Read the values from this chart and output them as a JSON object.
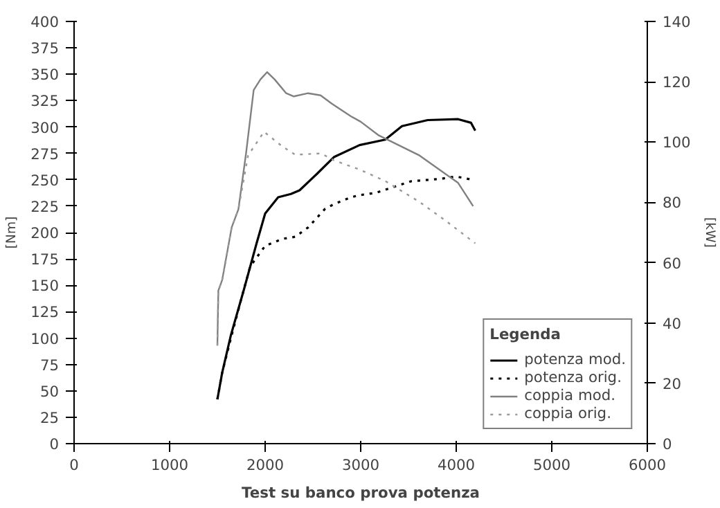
{
  "chart_data": {
    "type": "line",
    "title": "Test su banco prova potenza",
    "ylabel": "[Nm]",
    "y2label": "[kW]",
    "legend_title": "Legenda",
    "xlim": [
      0,
      6000
    ],
    "xticks": [
      0,
      1000,
      2000,
      3000,
      4000,
      5000,
      6000
    ],
    "ylim": [
      0,
      400
    ],
    "yticks": [
      0,
      25,
      50,
      75,
      100,
      125,
      150,
      175,
      200,
      225,
      250,
      275,
      300,
      325,
      350,
      375,
      400
    ],
    "y2lim": [
      0,
      140
    ],
    "y2ticks": [
      0,
      20,
      40,
      60,
      80,
      100,
      120,
      140
    ],
    "grid": false,
    "legend": "bottom right",
    "series": [
      {
        "name": "potenza mod.",
        "color": "#000000",
        "axis": "y2",
        "line_style": "solid",
        "x": [
          1500,
          1550,
          1640,
          1777,
          1911,
          2000,
          2136,
          2270,
          2360,
          2540,
          2719,
          2988,
          3257,
          3432,
          3701,
          4020,
          4155,
          4199
        ],
        "values": [
          14.7,
          23.5,
          35.8,
          51,
          66.5,
          76.3,
          81.7,
          82.8,
          84,
          89.4,
          95,
          99,
          100.8,
          105.3,
          107.3,
          107.6,
          106.4,
          103.8
        ]
      },
      {
        "name": "potenza orig.",
        "color": "#000000",
        "axis": "y2",
        "line_style": "dotted",
        "x": [
          1500,
          1550,
          1650,
          1750,
          1844,
          2000,
          2180,
          2315,
          2450,
          2628,
          2719,
          2898,
          2988,
          3163,
          3526,
          3836,
          3997,
          4172
        ],
        "values": [
          14.7,
          23.5,
          36,
          48,
          58.8,
          65.6,
          67.9,
          68.6,
          71.7,
          77.9,
          79.4,
          81.7,
          82.4,
          83.2,
          87,
          87.8,
          88.6,
          87.5
        ]
      },
      {
        "name": "coppia mod.",
        "color": "#808080",
        "line_style": "solid",
        "x": [
          1500,
          1510,
          1550,
          1650,
          1720,
          1800,
          1880,
          1950,
          2020,
          2100,
          2220,
          2300,
          2450,
          2580,
          2700,
          2900,
          3000,
          3190,
          3616,
          4020,
          4177
        ],
        "values": [
          93,
          145,
          155,
          205,
          222,
          275,
          335,
          345,
          352,
          345,
          332,
          329,
          332,
          330,
          322,
          310,
          305,
          292,
          273,
          247,
          225
        ]
      },
      {
        "name": "coppia orig.",
        "color": "#999999",
        "line_style": "dotted",
        "x": [
          1500,
          1510,
          1550,
          1650,
          1720,
          1821,
          1988,
          2180,
          2315,
          2584,
          2719,
          2988,
          3257,
          3616,
          3885,
          4199
        ],
        "values": [
          93,
          145,
          155,
          205,
          222,
          273,
          295.5,
          281.6,
          273.7,
          275,
          268.5,
          259.7,
          248.8,
          229,
          211.5,
          189.8
        ]
      }
    ]
  }
}
